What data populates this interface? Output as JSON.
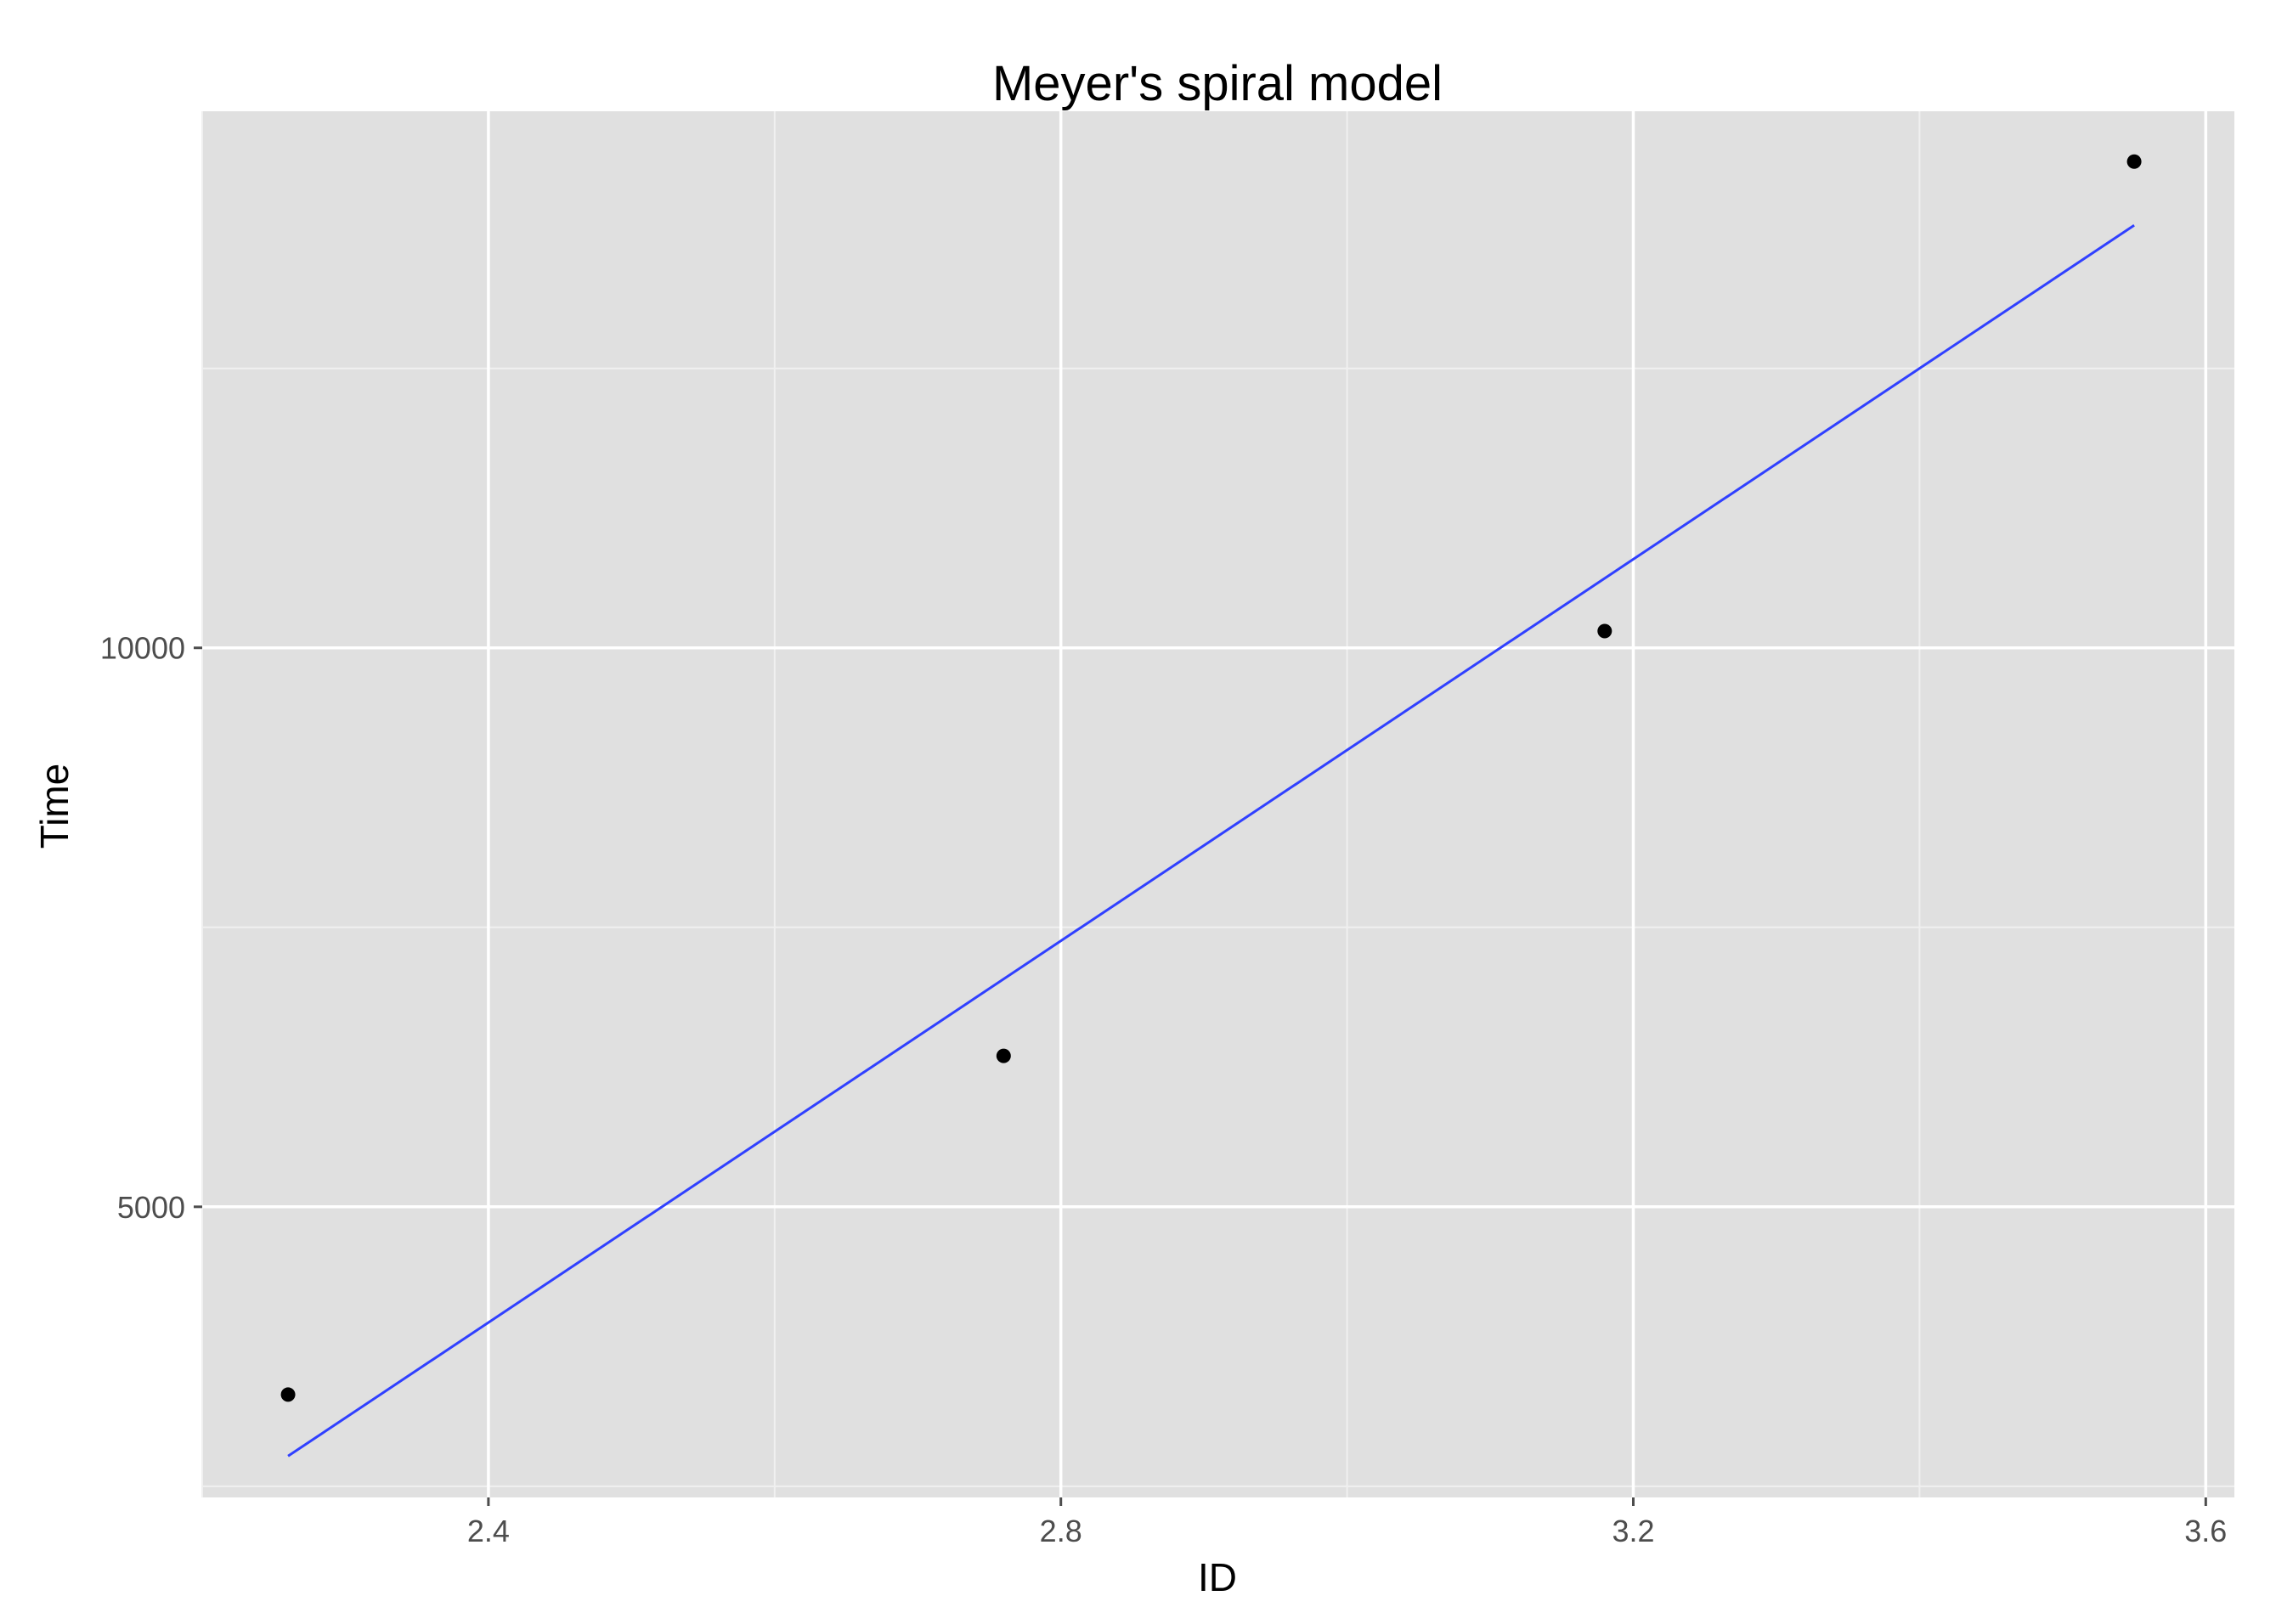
{
  "chart_data": {
    "type": "scatter",
    "title": "Meyer's spiral model",
    "xlabel": "ID",
    "ylabel": "Time",
    "xlim": [
      2.2,
      3.62
    ],
    "ylim": [
      2400,
      14800
    ],
    "x_ticks": [
      2.4,
      2.8,
      3.2,
      3.6
    ],
    "x_tick_labels": [
      "2.4",
      "2.8",
      "3.2",
      "3.6"
    ],
    "y_ticks": [
      5000,
      10000
    ],
    "y_tick_labels": [
      "5000",
      "10000"
    ],
    "grid": true,
    "legend": "none",
    "points": {
      "x": [
        2.26,
        2.76,
        3.18,
        3.55
      ],
      "y": [
        3320,
        6350,
        10150,
        14350
      ]
    },
    "fit_line": {
      "x": [
        2.26,
        3.55
      ],
      "y": [
        2770,
        13780
      ]
    },
    "colors": {
      "panel": "#e0e0e0",
      "grid_major": "#ffffff",
      "grid_minor": "#f0f0f0",
      "point": "#000000",
      "line": "#3040ff"
    }
  }
}
